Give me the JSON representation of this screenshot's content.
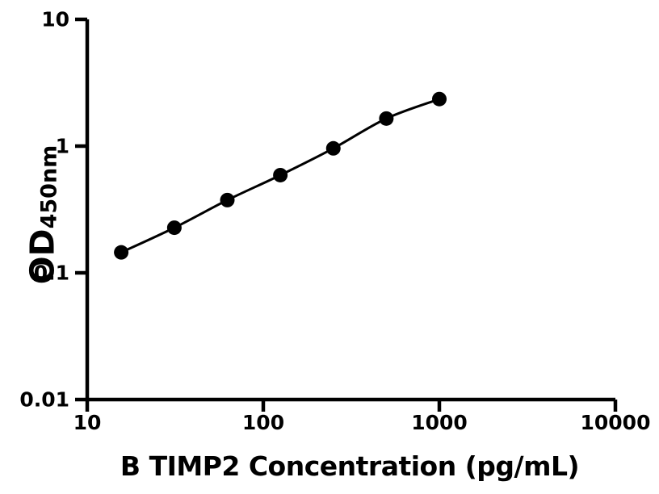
{
  "chart_data": {
    "type": "line",
    "title": "",
    "xlabel": "B TIMP2 Concentration (pg/mL)",
    "ylabel_main": "OD",
    "ylabel_sub": "450nm",
    "x_scale": "log",
    "y_scale": "log",
    "xlim": [
      10,
      10000
    ],
    "ylim": [
      0.01,
      10
    ],
    "x_ticks": [
      10,
      100,
      1000,
      10000
    ],
    "x_tick_labels": [
      "10",
      "100",
      "1000",
      "10000"
    ],
    "y_ticks": [
      0.01,
      0.1,
      1,
      10
    ],
    "y_tick_labels": [
      "0.01",
      "0.1",
      "1",
      "10"
    ],
    "grid": false,
    "legend": "none",
    "series": [
      {
        "x": [
          15.6,
          31.25,
          62.5,
          125,
          250,
          500,
          1000
        ],
        "y": [
          0.145,
          0.227,
          0.375,
          0.59,
          0.96,
          1.65,
          2.35
        ],
        "marker": "circle",
        "curve": "smooth",
        "color": "#000000"
      }
    ]
  },
  "colors": {
    "background": "#ffffff",
    "axis": "#000000",
    "line": "#000000",
    "marker": "#000000",
    "text": "#000000"
  }
}
